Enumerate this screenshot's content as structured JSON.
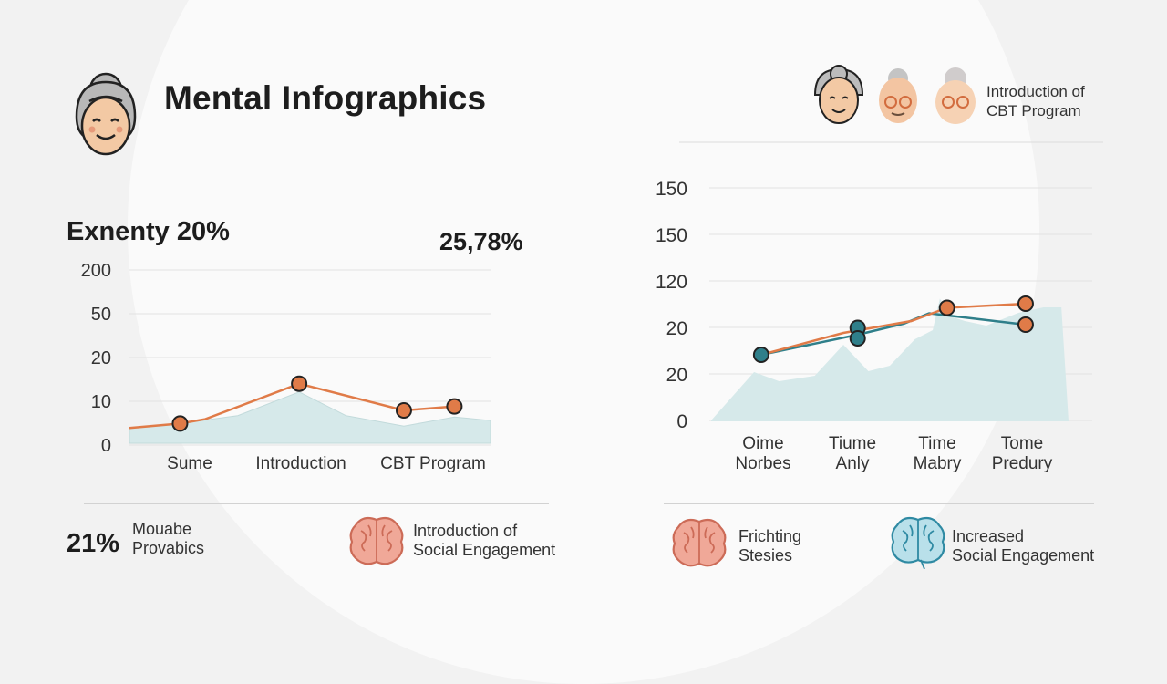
{
  "title": "Mental Infographics",
  "left_stat": "Exnenty 20%",
  "left_value": "25,78%",
  "legend_top_right": [
    "Introduction of",
    "CBT Program"
  ],
  "colors": {
    "area": "#d6e9ea",
    "orange": "#e07b48",
    "teal": "#2f7f8a",
    "red_brain": "#e8806e",
    "blue_brain": "#3a9ab0"
  },
  "chart_data": [
    {
      "type": "area",
      "y_tick_labels": [
        "200",
        "50",
        "20",
        "10",
        "0"
      ],
      "categories": [
        "Sume",
        "Introduction",
        "CBT Program"
      ],
      "area_series": [
        {
          "x": 0,
          "y": 0.35
        },
        {
          "x": 0.14,
          "y": 0.45
        },
        {
          "x": 0.3,
          "y": 0.63
        },
        {
          "x": 0.47,
          "y": 1.17
        },
        {
          "x": 0.6,
          "y": 0.63
        },
        {
          "x": 0.76,
          "y": 0.39
        },
        {
          "x": 0.9,
          "y": 0.6
        },
        {
          "x": 1,
          "y": 0.52
        }
      ],
      "line_series": [
        {
          "x": 0,
          "y": 0.35
        },
        {
          "x": 0.14,
          "y": 0.45
        },
        {
          "x": 0.21,
          "y": 0.55
        },
        {
          "x": 0.47,
          "y": 1.36
        },
        {
          "x": 0.76,
          "y": 0.75
        },
        {
          "x": 0.9,
          "y": 0.84
        }
      ],
      "markers": [
        {
          "x": 0.14,
          "y": 0.45
        },
        {
          "x": 0.47,
          "y": 1.36
        },
        {
          "x": 0.76,
          "y": 0.75
        },
        {
          "x": 0.9,
          "y": 0.84
        }
      ]
    },
    {
      "type": "area",
      "y_tick_labels": [
        "150",
        "150",
        "120",
        "20",
        "20",
        "0"
      ],
      "categories": [
        [
          "Oime",
          "Norbes"
        ],
        [
          "Tiume",
          "Anly"
        ],
        [
          "Time",
          "Mabry"
        ],
        [
          "Tome",
          "Predury"
        ]
      ],
      "area_series": [
        {
          "x": 0,
          "y": 0.04
        },
        {
          "x": 0.12,
          "y": 2.16
        },
        {
          "x": 0.19,
          "y": 1.76
        },
        {
          "x": 0.29,
          "y": 2.0
        },
        {
          "x": 0.37,
          "y": 3.36
        },
        {
          "x": 0.44,
          "y": 2.2
        },
        {
          "x": 0.5,
          "y": 2.44
        },
        {
          "x": 0.57,
          "y": 3.6
        },
        {
          "x": 0.62,
          "y": 4.0
        },
        {
          "x": 0.64,
          "y": 5.38
        },
        {
          "x": 0.67,
          "y": 4.6
        },
        {
          "x": 0.71,
          "y": 4.4
        },
        {
          "x": 0.77,
          "y": 4.2
        },
        {
          "x": 0.86,
          "y": 4.76
        },
        {
          "x": 0.93,
          "y": 5.0
        },
        {
          "x": 0.98,
          "y": 5.0
        },
        {
          "x": 1.0,
          "y": 0
        }
      ],
      "orange_series": [
        {
          "x": 0.14,
          "y": 2.92
        },
        {
          "x": 0.37,
          "y": 3.88
        },
        {
          "x": 0.56,
          "y": 4.4
        },
        {
          "x": 0.66,
          "y": 4.98
        },
        {
          "x": 0.88,
          "y": 5.16
        }
      ],
      "teal_series": [
        {
          "x": 0.14,
          "y": 2.92
        },
        {
          "x": 0.41,
          "y": 3.8
        },
        {
          "x": 0.54,
          "y": 4.29
        },
        {
          "x": 0.61,
          "y": 4.74
        },
        {
          "x": 0.88,
          "y": 4.24
        }
      ],
      "orange_markers": [
        {
          "x": 0.66,
          "y": 4.98
        },
        {
          "x": 0.88,
          "y": 5.16
        },
        {
          "x": 0.88,
          "y": 4.24
        }
      ],
      "teal_markers": [
        {
          "x": 0.14,
          "y": 2.92
        },
        {
          "x": 0.41,
          "y": 4.1
        },
        {
          "x": 0.41,
          "y": 3.64
        }
      ]
    }
  ],
  "footer_left": [
    {
      "percent": "21%",
      "lines": [
        "Mouabe",
        "Provabics"
      ]
    },
    {
      "lines": [
        "Introduction of",
        "Social Engagement"
      ]
    }
  ],
  "footer_right": [
    {
      "lines": [
        "Frichting",
        "Stesies"
      ]
    },
    {
      "lines": [
        "Increased",
        "Social Engagement"
      ]
    }
  ]
}
